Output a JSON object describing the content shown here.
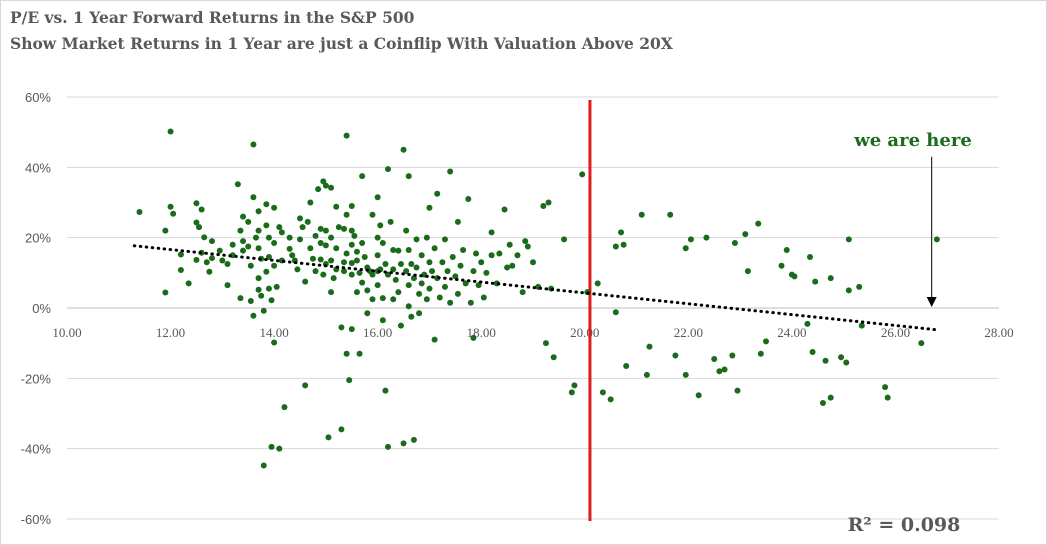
{
  "chart_data": {
    "type": "scatter",
    "title": "P/E vs. 1 Year Forward Returns in the S&P 500",
    "subtitle": "Show Market Returns in 1 Year are just a Coinflip  With Valuation Above 20X",
    "xlabel": "",
    "ylabel": "",
    "xlim": [
      10,
      28
    ],
    "ylim": [
      -60,
      60
    ],
    "x_ticks": [
      10,
      12,
      14,
      16,
      18,
      20,
      22,
      24,
      26,
      28
    ],
    "x_tick_labels": [
      "10.00",
      "12.00",
      "14.00",
      "16.00",
      "18.00",
      "20.00",
      "22.00",
      "24.00",
      "26.00",
      "28.00"
    ],
    "y_ticks": [
      60,
      40,
      20,
      0,
      -20,
      -40,
      -60
    ],
    "y_tick_labels": [
      "60%",
      "40%",
      "20%",
      "0%",
      "-20%",
      "-40%",
      "-60%"
    ],
    "grid": "horizontal",
    "marker_color": "#1a6b1a",
    "trendline": {
      "x": [
        11.3,
        26.8
      ],
      "y": [
        17.7,
        -6.2
      ],
      "r2_label": "R² = 0.098",
      "color": "#000000",
      "style": "dotted"
    },
    "reference_line": {
      "x": 20.1,
      "color": "#e01b1b"
    },
    "annotation": {
      "text": "we are here",
      "arrow_x": 26.7,
      "arrow_from_y": 43,
      "arrow_to_y": 0
    },
    "points": [
      [
        11.4,
        27.3
      ],
      [
        11.9,
        22
      ],
      [
        11.9,
        4.4
      ],
      [
        12,
        28.8
      ],
      [
        12.05,
        26.8
      ],
      [
        12,
        50.2
      ],
      [
        12.2,
        15.2
      ],
      [
        12.2,
        10.8
      ],
      [
        12.35,
        7
      ],
      [
        12.5,
        29.8
      ],
      [
        12.55,
        23
      ],
      [
        12.6,
        28
      ],
      [
        12.5,
        24.3
      ],
      [
        12.65,
        20.1
      ],
      [
        12.5,
        13.7
      ],
      [
        12.6,
        15.7
      ],
      [
        12.7,
        13
      ],
      [
        12.75,
        10.3
      ],
      [
        12.8,
        14.2
      ],
      [
        12.8,
        19
      ],
      [
        12.95,
        16.3
      ],
      [
        13,
        13.5
      ],
      [
        13.1,
        12.5
      ],
      [
        13.1,
        6.5
      ],
      [
        13.2,
        18
      ],
      [
        13.2,
        15
      ],
      [
        13.3,
        35.2
      ],
      [
        13.35,
        22
      ],
      [
        13.4,
        26
      ],
      [
        13.4,
        19
      ],
      [
        13.35,
        2.8
      ],
      [
        13.4,
        16.3
      ],
      [
        13.5,
        17.5
      ],
      [
        13.5,
        24.5
      ],
      [
        13.55,
        2
      ],
      [
        13.55,
        12
      ],
      [
        13.6,
        46.5
      ],
      [
        13.6,
        31.5
      ],
      [
        13.65,
        20
      ],
      [
        13.6,
        -2.2
      ],
      [
        13.7,
        27.5
      ],
      [
        13.7,
        22
      ],
      [
        13.7,
        17
      ],
      [
        13.75,
        14
      ],
      [
        13.7,
        8.5
      ],
      [
        13.7,
        5.2
      ],
      [
        13.75,
        3.5
      ],
      [
        13.8,
        -0.8
      ],
      [
        13.8,
        -44.8
      ],
      [
        13.85,
        29.5
      ],
      [
        13.85,
        23.5
      ],
      [
        13.9,
        20
      ],
      [
        13.9,
        14.5
      ],
      [
        13.85,
        10.3
      ],
      [
        13.9,
        5.5
      ],
      [
        13.95,
        2.2
      ],
      [
        14,
        28.5
      ],
      [
        14,
        18.5
      ],
      [
        14,
        12
      ],
      [
        14.05,
        6
      ],
      [
        13.95,
        -39.5
      ],
      [
        14,
        -9.8
      ],
      [
        14.1,
        -40
      ],
      [
        14.1,
        23
      ],
      [
        14.15,
        21.5
      ],
      [
        14.15,
        13.5
      ],
      [
        14.2,
        -28.2
      ],
      [
        14.3,
        20
      ],
      [
        14.3,
        16.8
      ],
      [
        14.35,
        15
      ],
      [
        14.4,
        13.5
      ],
      [
        14.45,
        11
      ],
      [
        14.5,
        19.5
      ],
      [
        14.5,
        25.5
      ],
      [
        14.55,
        23
      ],
      [
        14.6,
        7.5
      ],
      [
        14.6,
        -22
      ],
      [
        14.65,
        24.5
      ],
      [
        14.7,
        30
      ],
      [
        14.7,
        17
      ],
      [
        14.75,
        14
      ],
      [
        14.8,
        10.5
      ],
      [
        14.8,
        20.5
      ],
      [
        14.85,
        33.8
      ],
      [
        14.9,
        22.5
      ],
      [
        14.9,
        18.5
      ],
      [
        14.9,
        13.8
      ],
      [
        14.95,
        36
      ],
      [
        14.95,
        9.5
      ],
      [
        15,
        34.8
      ],
      [
        15,
        22
      ],
      [
        15,
        17.8
      ],
      [
        15,
        12.5
      ],
      [
        15.05,
        -36.8
      ],
      [
        15.1,
        34.2
      ],
      [
        15.1,
        20
      ],
      [
        15.1,
        13.5
      ],
      [
        15.1,
        4.5
      ],
      [
        15.15,
        8.5
      ],
      [
        15.2,
        28.8
      ],
      [
        15.2,
        17
      ],
      [
        15.2,
        11
      ],
      [
        15.25,
        23
      ],
      [
        15.3,
        -5.5
      ],
      [
        15.3,
        -34.5
      ],
      [
        15.35,
        22.5
      ],
      [
        15.35,
        13
      ],
      [
        15.35,
        10.5
      ],
      [
        15.4,
        49
      ],
      [
        15.4,
        26.5
      ],
      [
        15.4,
        15.5
      ],
      [
        15.4,
        -13
      ],
      [
        15.45,
        -20.5
      ],
      [
        15.5,
        29
      ],
      [
        15.5,
        22
      ],
      [
        15.5,
        18
      ],
      [
        15.5,
        12.8
      ],
      [
        15.5,
        9.5
      ],
      [
        15.5,
        -6
      ],
      [
        15.55,
        20.5
      ],
      [
        15.6,
        16
      ],
      [
        15.6,
        13.5
      ],
      [
        15.6,
        4.5
      ],
      [
        15.65,
        10
      ],
      [
        15.65,
        -13
      ],
      [
        15.7,
        37.5
      ],
      [
        15.7,
        18.5
      ],
      [
        15.75,
        14.5
      ],
      [
        15.7,
        7.2
      ],
      [
        15.8,
        11.5
      ],
      [
        15.8,
        5
      ],
      [
        15.8,
        -1.5
      ],
      [
        15.85,
        10.5
      ],
      [
        15.9,
        26.5
      ],
      [
        15.9,
        9.5
      ],
      [
        15.9,
        2.5
      ],
      [
        16,
        31.5
      ],
      [
        16,
        20
      ],
      [
        16,
        15
      ],
      [
        16,
        10.5
      ],
      [
        16,
        6.5
      ],
      [
        16.05,
        23.5
      ],
      [
        16.05,
        11
      ],
      [
        16.1,
        18.5
      ],
      [
        16.1,
        2.8
      ],
      [
        16.1,
        -3.5
      ],
      [
        16.15,
        12.5
      ],
      [
        16.15,
        -23.5
      ],
      [
        16.2,
        39.5
      ],
      [
        16.2,
        9.5
      ],
      [
        16.25,
        24.5
      ],
      [
        16.2,
        -39.5
      ],
      [
        16.3,
        16.5
      ],
      [
        16.3,
        11
      ],
      [
        16.3,
        2.5
      ],
      [
        16.35,
        8
      ],
      [
        16.4,
        16.3
      ],
      [
        16.4,
        4.5
      ],
      [
        16.45,
        12.5
      ],
      [
        16.45,
        -5
      ],
      [
        16.5,
        45
      ],
      [
        16.5,
        -38.5
      ],
      [
        16.55,
        22
      ],
      [
        16.55,
        10.5
      ],
      [
        16.6,
        37.5
      ],
      [
        16.6,
        16.5
      ],
      [
        16.6,
        6.5
      ],
      [
        16.6,
        0.5
      ],
      [
        16.65,
        12.5
      ],
      [
        16.65,
        -2.5
      ],
      [
        16.7,
        -37.5
      ],
      [
        16.7,
        8.5
      ],
      [
        16.75,
        19.5
      ],
      [
        16.75,
        11.5
      ],
      [
        16.8,
        4
      ],
      [
        16.8,
        -1.5
      ],
      [
        16.85,
        15
      ],
      [
        16.85,
        7
      ],
      [
        16.9,
        9.5
      ],
      [
        16.95,
        20
      ],
      [
        16.95,
        2.5
      ],
      [
        17,
        28.5
      ],
      [
        17,
        13
      ],
      [
        17,
        5.5
      ],
      [
        17.05,
        10.5
      ],
      [
        17.1,
        -9
      ],
      [
        17.1,
        17
      ],
      [
        17.15,
        32.5
      ],
      [
        17.15,
        8.5
      ],
      [
        17.2,
        3
      ],
      [
        17.25,
        13
      ],
      [
        17.3,
        19.5
      ],
      [
        17.3,
        6
      ],
      [
        17.35,
        10.5
      ],
      [
        17.4,
        38.8
      ],
      [
        17.4,
        1.5
      ],
      [
        17.45,
        14.5
      ],
      [
        17.5,
        9
      ],
      [
        17.55,
        24.5
      ],
      [
        17.55,
        4
      ],
      [
        17.6,
        12
      ],
      [
        17.65,
        16.5
      ],
      [
        17.7,
        7
      ],
      [
        17.75,
        31
      ],
      [
        17.8,
        1.5
      ],
      [
        17.85,
        10.5
      ],
      [
        17.85,
        -8.5
      ],
      [
        17.9,
        15.5
      ],
      [
        17.95,
        6.5
      ],
      [
        18,
        13
      ],
      [
        18.05,
        3
      ],
      [
        18.1,
        10
      ],
      [
        18.2,
        15
      ],
      [
        18.2,
        21.5
      ],
      [
        18.3,
        7
      ],
      [
        18.35,
        15.5
      ],
      [
        18.45,
        28
      ],
      [
        18.5,
        11.5
      ],
      [
        18.55,
        18
      ],
      [
        18.6,
        12
      ],
      [
        18.7,
        15
      ],
      [
        18.8,
        4.5
      ],
      [
        18.85,
        19
      ],
      [
        18.9,
        17.5
      ],
      [
        19,
        13
      ],
      [
        19.1,
        6
      ],
      [
        19.2,
        29
      ],
      [
        19.25,
        -10
      ],
      [
        19.3,
        30
      ],
      [
        19.35,
        5.5
      ],
      [
        19.4,
        -14
      ],
      [
        19.6,
        19.5
      ],
      [
        19.75,
        -24
      ],
      [
        19.8,
        -22
      ],
      [
        19.95,
        38
      ],
      [
        20.05,
        4.5
      ],
      [
        20.25,
        7
      ],
      [
        20.35,
        -24
      ],
      [
        20.5,
        -26
      ],
      [
        20.6,
        17.5
      ],
      [
        20.6,
        -1.2
      ],
      [
        20.7,
        21.5
      ],
      [
        20.75,
        18
      ],
      [
        20.8,
        -16.5
      ],
      [
        21.1,
        26.5
      ],
      [
        21.2,
        -19
      ],
      [
        21.25,
        -11
      ],
      [
        21.65,
        26.5
      ],
      [
        21.75,
        -13.5
      ],
      [
        21.95,
        -19
      ],
      [
        21.95,
        17
      ],
      [
        22.05,
        19.5
      ],
      [
        22.2,
        -24.8
      ],
      [
        22.35,
        20
      ],
      [
        22.5,
        -14.5
      ],
      [
        22.6,
        -18
      ],
      [
        22.7,
        -17.5
      ],
      [
        22.85,
        -13.5
      ],
      [
        22.9,
        18.5
      ],
      [
        22.95,
        -23.5
      ],
      [
        23.1,
        21
      ],
      [
        23.15,
        10.5
      ],
      [
        23.35,
        24
      ],
      [
        23.4,
        -13
      ],
      [
        23.5,
        -9.5
      ],
      [
        23.8,
        12
      ],
      [
        23.9,
        16.5
      ],
      [
        24,
        9.5
      ],
      [
        24.05,
        9
      ],
      [
        24.3,
        -4.5
      ],
      [
        24.35,
        14.5
      ],
      [
        24.4,
        -12.5
      ],
      [
        24.45,
        7.5
      ],
      [
        24.6,
        -27
      ],
      [
        24.65,
        -15
      ],
      [
        24.75,
        8.5
      ],
      [
        24.75,
        -25.5
      ],
      [
        24.95,
        -14
      ],
      [
        25.05,
        -15.5
      ],
      [
        25.1,
        5
      ],
      [
        25.1,
        19.5
      ],
      [
        25.3,
        6
      ],
      [
        25.35,
        -5
      ],
      [
        25.8,
        -22.5
      ],
      [
        25.85,
        -25.5
      ],
      [
        26.5,
        -10
      ],
      [
        26.8,
        19.5
      ]
    ]
  }
}
